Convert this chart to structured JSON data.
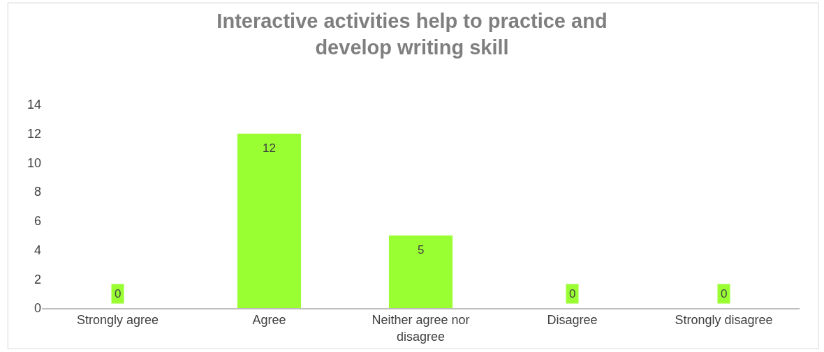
{
  "chart_data": {
    "type": "bar",
    "title": "Interactive activities help to practice and develop writing skill",
    "categories": [
      "Strongly agree",
      "Agree",
      "Neither agree nor disagree",
      "Disagree",
      "Strongly disagree"
    ],
    "values": [
      0,
      12,
      5,
      0,
      0
    ],
    "color": "#99ff33",
    "ylim": [
      0,
      14
    ],
    "yticks": [
      0,
      2,
      4,
      6,
      8,
      10,
      12,
      14
    ],
    "grid": false,
    "data_labels": true
  }
}
